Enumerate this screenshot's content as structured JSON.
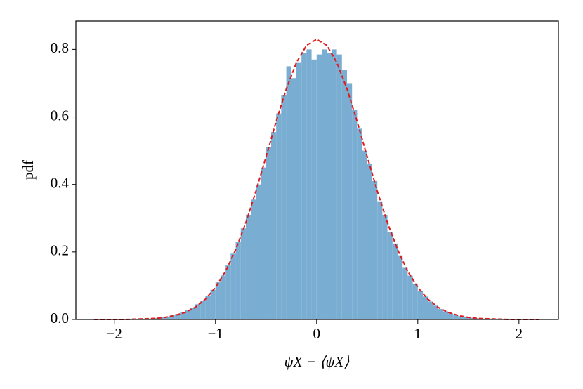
{
  "chart_data": {
    "type": "histogram",
    "xlabel": "ψX − ⟨ψX⟩",
    "ylabel": "pdf",
    "bins": [
      -2.2,
      -2.15,
      -2.1,
      -2.05,
      -2.0,
      -1.95,
      -1.9,
      -1.85,
      -1.8,
      -1.75,
      -1.7,
      -1.65,
      -1.6,
      -1.55,
      -1.5,
      -1.45,
      -1.4,
      -1.35,
      -1.3,
      -1.25,
      -1.2,
      -1.15,
      -1.1,
      -1.05,
      -1.0,
      -0.95,
      -0.9,
      -0.85,
      -0.8,
      -0.75,
      -0.7,
      -0.65,
      -0.6,
      -0.55,
      -0.5,
      -0.45,
      -0.4,
      -0.35,
      -0.3,
      -0.25,
      -0.2,
      -0.15,
      -0.1,
      -0.05,
      0,
      0.05,
      0.1,
      0.15,
      0.2,
      0.25,
      0.3,
      0.35,
      0.4,
      0.45,
      0.5,
      0.55,
      0.6,
      0.65,
      0.7,
      0.75,
      0.8,
      0.85,
      0.9,
      0.95,
      1.0,
      1.05,
      1.1,
      1.15,
      1.2,
      1.25,
      1.3,
      1.35,
      1.4,
      1.45,
      1.5,
      1.55,
      1.6,
      1.65,
      1.7,
      1.75,
      1.8,
      1.85,
      1.9,
      1.95,
      2.0,
      2.05,
      2.1,
      2.15,
      2.2
    ],
    "values": [
      0,
      0,
      0,
      0,
      0,
      0,
      0,
      0.001,
      0.001,
      0.001,
      0.002,
      0.003,
      0.004,
      0.006,
      0.009,
      0.012,
      0.016,
      0.021,
      0.027,
      0.035,
      0.045,
      0.056,
      0.07,
      0.088,
      0.11,
      0.13,
      0.16,
      0.195,
      0.23,
      0.27,
      0.31,
      0.355,
      0.4,
      0.45,
      0.51,
      0.555,
      0.61,
      0.665,
      0.75,
      0.715,
      0.76,
      0.79,
      0.8,
      0.77,
      0.785,
      0.8,
      0.79,
      0.8,
      0.785,
      0.74,
      0.7,
      0.62,
      0.565,
      0.5,
      0.46,
      0.41,
      0.35,
      0.31,
      0.26,
      0.225,
      0.19,
      0.155,
      0.13,
      0.105,
      0.085,
      0.068,
      0.053,
      0.041,
      0.031,
      0.024,
      0.018,
      0.013,
      0.01,
      0.007,
      0.005,
      0.004,
      0.003,
      0.002,
      0.001,
      0.001,
      0.001,
      0,
      0,
      0,
      0,
      0,
      0,
      0
    ],
    "color": "#79add2",
    "curve": {
      "type": "line",
      "color": "#e0181b",
      "linestyle": "dashed",
      "x": [
        -2.2,
        -2.1,
        -2.0,
        -1.9,
        -1.8,
        -1.7,
        -1.6,
        -1.5,
        -1.4,
        -1.3,
        -1.2,
        -1.1,
        -1.0,
        -0.9,
        -0.8,
        -0.7,
        -0.6,
        -0.5,
        -0.4,
        -0.3,
        -0.2,
        -0.1,
        0,
        0.1,
        0.2,
        0.3,
        0.4,
        0.5,
        0.6,
        0.7,
        0.8,
        0.9,
        1.0,
        1.1,
        1.2,
        1.3,
        1.4,
        1.5,
        1.6,
        1.7,
        1.8,
        1.9,
        2.0,
        2.1,
        2.2
      ],
      "values": [
        0,
        0,
        0,
        0,
        0.001,
        0.002,
        0.003,
        0.006,
        0.012,
        0.021,
        0.036,
        0.06,
        0.095,
        0.143,
        0.207,
        0.287,
        0.38,
        0.482,
        0.587,
        0.683,
        0.761,
        0.812,
        0.83,
        0.812,
        0.761,
        0.683,
        0.587,
        0.482,
        0.38,
        0.287,
        0.207,
        0.143,
        0.095,
        0.06,
        0.036,
        0.021,
        0.012,
        0.006,
        0.003,
        0.002,
        0.001,
        0,
        0,
        0,
        0
      ]
    },
    "xlim": [
      -2.38,
      2.39
    ],
    "ylim": [
      0,
      0.884
    ],
    "xticks": [
      {
        "value": -2,
        "label": "−2"
      },
      {
        "value": -1,
        "label": "−1"
      },
      0,
      1,
      2
    ],
    "yticks": [
      {
        "value": 0,
        "label": "0.0"
      },
      0.2,
      0.4,
      0.6,
      0.8
    ]
  }
}
